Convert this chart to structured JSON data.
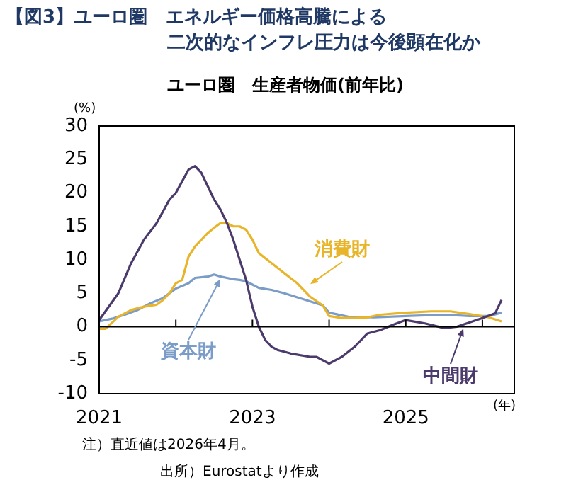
{
  "chart_data": {
    "type": "line",
    "title": "【図3】ユーロ圏　エネルギー価格高騰による二次的なインフレ圧力は今後顕在化か",
    "subtitle": "ユーロ圏　生産者物価(前年比)",
    "ylabel": "(%)",
    "xlabel": "(年)",
    "annotations": [
      "注）直近値は2026年4月。",
      "出所）Eurostatより作成"
    ],
    "xlim": [
      "2021-01",
      "2026-06"
    ],
    "xticks": [
      {
        "value": "2021-01",
        "label": "2021"
      },
      {
        "value": "2022-01",
        "label": null
      },
      {
        "value": "2023-01",
        "label": "2023"
      },
      {
        "value": "2024-01",
        "label": null
      },
      {
        "value": "2025-01",
        "label": "2025"
      },
      {
        "value": "2026-01",
        "label": null
      }
    ],
    "ylim": [
      -10,
      30
    ],
    "yticks": [
      -10,
      -5,
      0,
      5,
      10,
      15,
      20,
      25,
      30
    ],
    "ref_lines": [
      {
        "axis": "y",
        "value": 0,
        "color": "#000000"
      }
    ],
    "grid": false,
    "legend": "bottom right",
    "marker": "none",
    "line_style": "solid",
    "series": [
      {
        "name": "中間財",
        "color": "#4b3a6b",
        "x": [
          "2021-01",
          "2021-04",
          "2021-06",
          "2021-08",
          "2021-10",
          "2021-12",
          "2022-01",
          "2022-03",
          "2022-04",
          "2022-05",
          "2022-06",
          "2022-07",
          "2022-08",
          "2022-09",
          "2022-10",
          "2022-11",
          "2022-12",
          "2023-01",
          "2023-02",
          "2023-03",
          "2023-04",
          "2023-05",
          "2023-07",
          "2023-10",
          "2023-11",
          "2024-01",
          "2024-03",
          "2024-05",
          "2024-07",
          "2024-09",
          "2024-11",
          "2025-01",
          "2025-04",
          "2025-07",
          "2025-09",
          "2026-01",
          "2026-03",
          "2026-04"
        ],
        "values": [
          1,
          5,
          9.5,
          13,
          15.5,
          19,
          20,
          23.5,
          24,
          23,
          21,
          19,
          17.5,
          15.5,
          13,
          10,
          7,
          3,
          0,
          -2,
          -3,
          -3.5,
          -4,
          -4.5,
          -4.5,
          -5.5,
          -4.5,
          -3,
          -1,
          -0.5,
          0.3,
          1,
          0.5,
          -0.2,
          0,
          1.3,
          2,
          4
        ]
      },
      {
        "name": "消費財",
        "color": "#e8b52a",
        "x": [
          "2021-01",
          "2021-02",
          "2021-04",
          "2021-06",
          "2021-08",
          "2021-10",
          "2021-11",
          "2021-12",
          "2022-01",
          "2022-02",
          "2022-03",
          "2022-04",
          "2022-05",
          "2022-06",
          "2022-07",
          "2022-08",
          "2022-09",
          "2022-10",
          "2022-11",
          "2022-12",
          "2023-01",
          "2023-02",
          "2023-04",
          "2023-06",
          "2023-08",
          "2023-10",
          "2023-12",
          "2024-01",
          "2024-03",
          "2024-05",
          "2024-07",
          "2024-09",
          "2025-01",
          "2025-05",
          "2025-08",
          "2025-11",
          "2026-02",
          "2026-04"
        ],
        "values": [
          -0.3,
          -0.3,
          1.5,
          2.5,
          3,
          3.3,
          4,
          5,
          6.5,
          7,
          10.5,
          12,
          13,
          14,
          14.8,
          15.5,
          15.5,
          15,
          15,
          14.5,
          13,
          11,
          9.5,
          8,
          6.5,
          4.5,
          3.2,
          1.6,
          1.3,
          1.3,
          1.4,
          1.8,
          2.1,
          2.3,
          2.3,
          1.9,
          1.4,
          0.8
        ]
      },
      {
        "name": "資本財",
        "color": "#7a9cc6",
        "x": [
          "2021-01",
          "2021-03",
          "2021-05",
          "2021-07",
          "2021-09",
          "2021-11",
          "2021-12",
          "2022-01",
          "2022-03",
          "2022-04",
          "2022-06",
          "2022-07",
          "2022-08",
          "2022-09",
          "2022-10",
          "2022-11",
          "2022-12",
          "2023-01",
          "2023-02",
          "2023-04",
          "2023-06",
          "2023-09",
          "2023-12",
          "2024-01",
          "2024-04",
          "2024-08",
          "2025-01",
          "2025-07",
          "2025-11",
          "2026-02",
          "2026-04"
        ],
        "values": [
          0.8,
          1.2,
          1.8,
          2.5,
          3.5,
          4.3,
          5,
          5.7,
          6.5,
          7.3,
          7.5,
          7.8,
          7.5,
          7.3,
          7.1,
          7,
          6.8,
          6.3,
          5.8,
          5.5,
          5,
          4.1,
          3.2,
          2.1,
          1.5,
          1.4,
          1.6,
          1.8,
          1.6,
          1.6,
          2.1
        ]
      }
    ]
  }
}
